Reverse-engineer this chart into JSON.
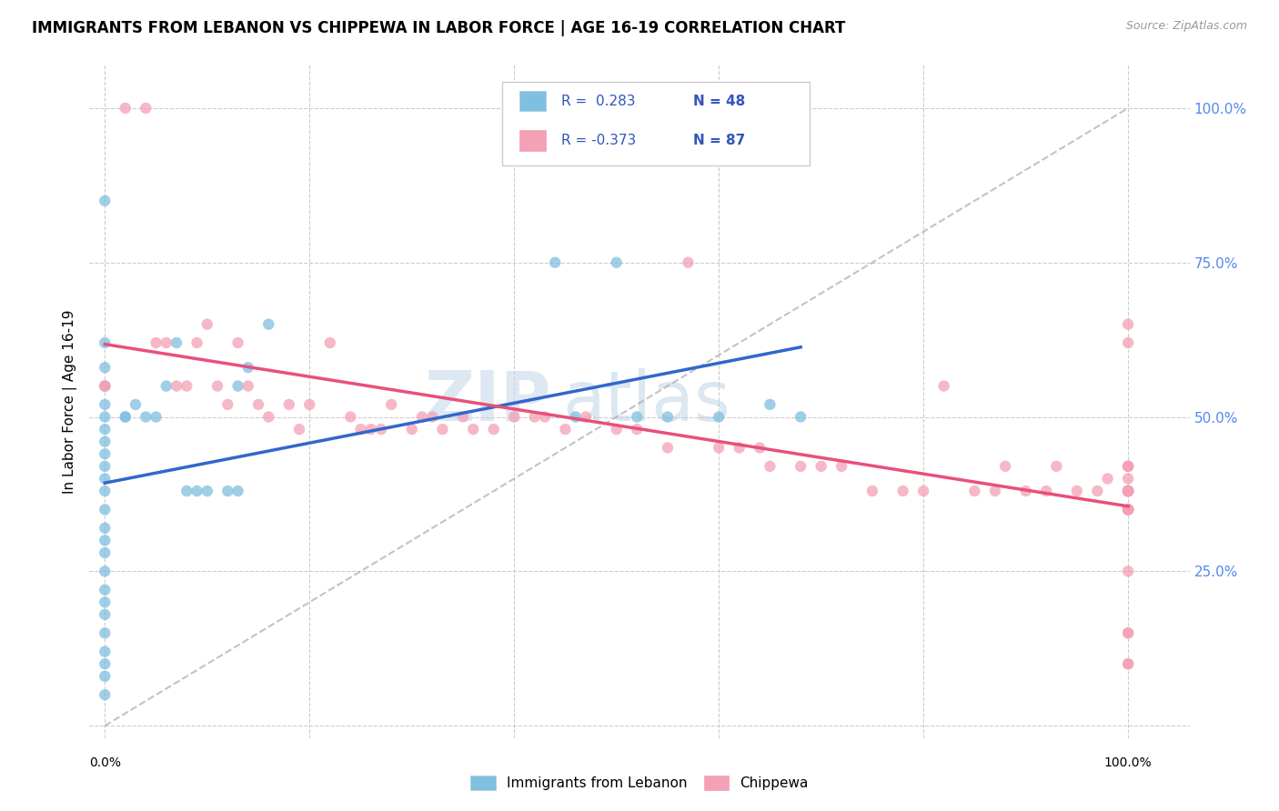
{
  "title": "IMMIGRANTS FROM LEBANON VS CHIPPEWA IN LABOR FORCE | AGE 16-19 CORRELATION CHART",
  "source": "Source: ZipAtlas.com",
  "ylabel": "In Labor Force | Age 16-19",
  "color_blue": "#7fbfdf",
  "color_pink": "#f4a0b5",
  "color_trend_blue": "#3366cc",
  "color_trend_pink": "#e8507a",
  "color_dashed": "#aaaaaa",
  "watermark_zip": "ZIP",
  "watermark_atlas": "atlas",
  "legend_r1": "R =  0.283",
  "legend_n1": "N = 48",
  "legend_r2": "R = -0.373",
  "legend_n2": "N = 87",
  "blue_scatter_x": [
    0.0,
    0.0,
    0.0,
    0.0,
    0.0,
    0.0,
    0.0,
    0.0,
    0.0,
    0.0,
    0.0,
    0.0,
    0.0,
    0.0,
    0.0,
    0.0,
    0.0,
    0.0,
    0.0,
    0.0,
    0.0,
    0.0,
    0.0,
    0.0,
    0.0,
    0.02,
    0.02,
    0.03,
    0.04,
    0.05,
    0.06,
    0.07,
    0.08,
    0.09,
    0.1,
    0.12,
    0.13,
    0.13,
    0.14,
    0.16,
    0.44,
    0.46,
    0.5,
    0.52,
    0.55,
    0.6,
    0.65,
    0.68
  ],
  "blue_scatter_y": [
    0.05,
    0.08,
    0.1,
    0.12,
    0.15,
    0.18,
    0.2,
    0.22,
    0.25,
    0.28,
    0.3,
    0.32,
    0.35,
    0.38,
    0.4,
    0.42,
    0.44,
    0.46,
    0.48,
    0.5,
    0.52,
    0.55,
    0.58,
    0.62,
    0.85,
    0.5,
    0.5,
    0.52,
    0.5,
    0.5,
    0.55,
    0.62,
    0.38,
    0.38,
    0.38,
    0.38,
    0.38,
    0.55,
    0.58,
    0.65,
    0.75,
    0.5,
    0.75,
    0.5,
    0.5,
    0.5,
    0.52,
    0.5
  ],
  "pink_scatter_x": [
    0.0,
    0.0,
    0.02,
    0.04,
    0.05,
    0.06,
    0.07,
    0.08,
    0.09,
    0.1,
    0.11,
    0.12,
    0.13,
    0.14,
    0.15,
    0.16,
    0.18,
    0.19,
    0.2,
    0.22,
    0.24,
    0.25,
    0.26,
    0.27,
    0.28,
    0.3,
    0.31,
    0.32,
    0.33,
    0.35,
    0.36,
    0.38,
    0.4,
    0.42,
    0.43,
    0.45,
    0.47,
    0.5,
    0.52,
    0.55,
    0.57,
    0.6,
    0.62,
    0.64,
    0.65,
    0.68,
    0.7,
    0.72,
    0.75,
    0.78,
    0.8,
    0.82,
    0.85,
    0.87,
    0.88,
    0.9,
    0.92,
    0.93,
    0.95,
    0.97,
    0.98,
    1.0,
    1.0,
    1.0,
    1.0,
    1.0,
    1.0,
    1.0,
    1.0,
    1.0,
    1.0,
    1.0,
    1.0,
    1.0,
    1.0,
    1.0,
    1.0,
    1.0,
    1.0,
    1.0,
    1.0,
    1.0,
    1.0,
    1.0,
    1.0,
    1.0,
    1.0
  ],
  "pink_scatter_y": [
    0.55,
    0.55,
    1.0,
    1.0,
    0.62,
    0.62,
    0.55,
    0.55,
    0.62,
    0.65,
    0.55,
    0.52,
    0.62,
    0.55,
    0.52,
    0.5,
    0.52,
    0.48,
    0.52,
    0.62,
    0.5,
    0.48,
    0.48,
    0.48,
    0.52,
    0.48,
    0.5,
    0.5,
    0.48,
    0.5,
    0.48,
    0.48,
    0.5,
    0.5,
    0.5,
    0.48,
    0.5,
    0.48,
    0.48,
    0.45,
    0.75,
    0.45,
    0.45,
    0.45,
    0.42,
    0.42,
    0.42,
    0.42,
    0.38,
    0.38,
    0.38,
    0.55,
    0.38,
    0.38,
    0.42,
    0.38,
    0.38,
    0.42,
    0.38,
    0.38,
    0.4,
    0.38,
    0.38,
    0.38,
    0.4,
    0.35,
    0.35,
    0.62,
    0.15,
    0.42,
    0.38,
    0.38,
    0.35,
    0.38,
    0.35,
    0.38,
    0.38,
    0.42,
    0.35,
    0.35,
    0.38,
    0.42,
    0.65,
    0.25,
    0.15,
    0.1,
    0.1
  ]
}
